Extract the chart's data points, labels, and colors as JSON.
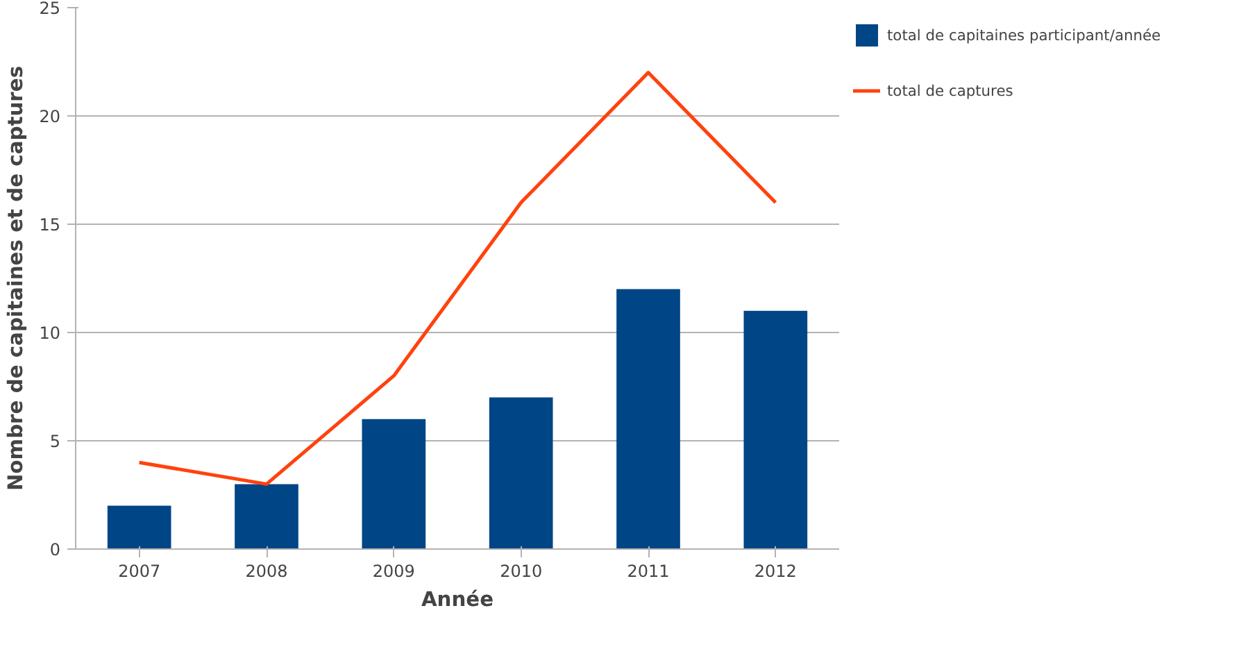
{
  "chart_data": {
    "type": "bar",
    "xlabel": "Année",
    "ylabel": "Nombre de capitaines et de captures",
    "categories": [
      "2007",
      "2008",
      "2009",
      "2010",
      "2011",
      "2012"
    ],
    "series": [
      {
        "name": "total de capitaines participant/année",
        "color": "#004586",
        "values": [
          2,
          3,
          6,
          7,
          12,
          11
        ]
      },
      {
        "name": "total de captures",
        "type": "line",
        "color": "#ff420e",
        "values": [
          4,
          3,
          8,
          16,
          22,
          16
        ]
      }
    ],
    "ylim": [
      0,
      25
    ],
    "yticks": [
      0,
      5,
      10,
      15,
      20,
      25
    ],
    "grid": "y",
    "legend": "right"
  }
}
